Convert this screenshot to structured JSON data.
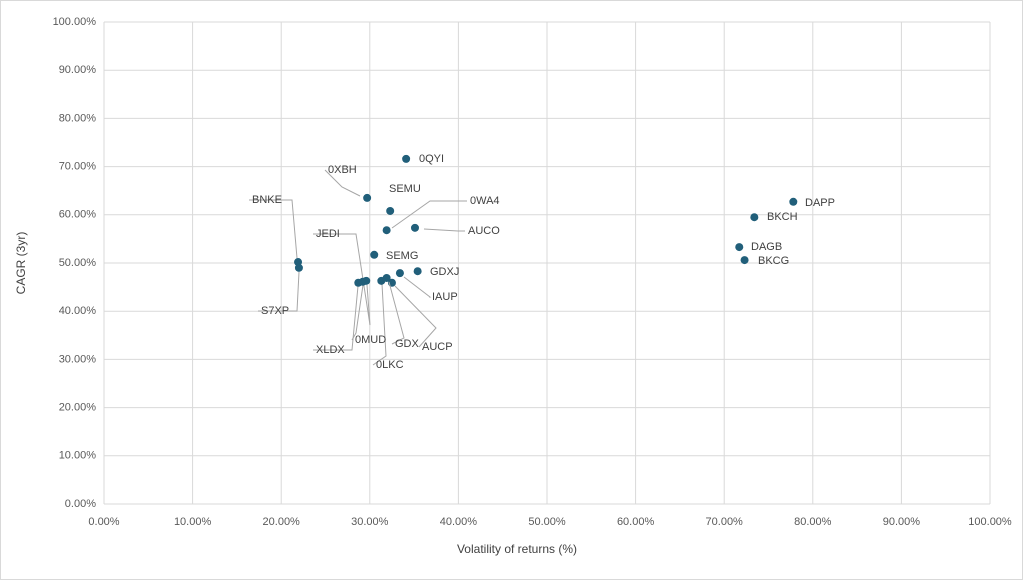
{
  "chart_data": {
    "type": "scatter",
    "x_label": "Volatility of returns (%)",
    "y_label": "CAGR (3yr)",
    "xlim": [
      0,
      100
    ],
    "ylim": [
      0,
      100
    ],
    "grid": true,
    "xticks": [
      {
        "value": 0,
        "label": "0.00%"
      },
      {
        "value": 10,
        "label": "10.00%"
      },
      {
        "value": 20,
        "label": "20.00%"
      },
      {
        "value": 30,
        "label": "30.00%"
      },
      {
        "value": 40,
        "label": "40.00%"
      },
      {
        "value": 50,
        "label": "50.00%"
      },
      {
        "value": 60,
        "label": "60.00%"
      },
      {
        "value": 70,
        "label": "70.00%"
      },
      {
        "value": 80,
        "label": "80.00%"
      },
      {
        "value": 90,
        "label": "90.00%"
      },
      {
        "value": 100,
        "label": "100.00%"
      }
    ],
    "yticks": [
      {
        "value": 0,
        "label": "0.00%"
      },
      {
        "value": 10,
        "label": "10.00%"
      },
      {
        "value": 20,
        "label": "20.00%"
      },
      {
        "value": 30,
        "label": "30.00%"
      },
      {
        "value": 40,
        "label": "40.00%"
      },
      {
        "value": 50,
        "label": "50.00%"
      },
      {
        "value": 60,
        "label": "60.00%"
      },
      {
        "value": 70,
        "label": "70.00%"
      },
      {
        "value": 80,
        "label": "80.00%"
      },
      {
        "value": 90,
        "label": "90.00%"
      },
      {
        "value": 100,
        "label": "100.00%"
      }
    ],
    "series": [
      {
        "color": "#215f7a",
        "labels": [
          "0QYI",
          "0XBH",
          "SEMU",
          "0WA4",
          "AUCO",
          "SEMG",
          "BNKE",
          "S7XP",
          "GDXJ",
          "IAUP",
          "AUCP",
          "GDX",
          "0LKC",
          "JEDI",
          "0MUD",
          "XLDX",
          "DAPP",
          "BKCH",
          "DAGB",
          "BKCG"
        ],
        "x": [
          34.1,
          29.7,
          32.3,
          31.9,
          35.1,
          30.5,
          21.9,
          22.0,
          35.4,
          33.4,
          32.5,
          31.9,
          31.3,
          29.6,
          29.2,
          28.7,
          77.8,
          73.4,
          71.7,
          72.3
        ],
        "values": [
          71.6,
          63.5,
          60.8,
          56.8,
          57.3,
          51.7,
          50.2,
          49.0,
          48.3,
          47.9,
          45.9,
          46.9,
          46.3,
          46.3,
          46.1,
          45.9,
          62.7,
          59.5,
          53.3,
          50.6
        ]
      }
    ]
  }
}
